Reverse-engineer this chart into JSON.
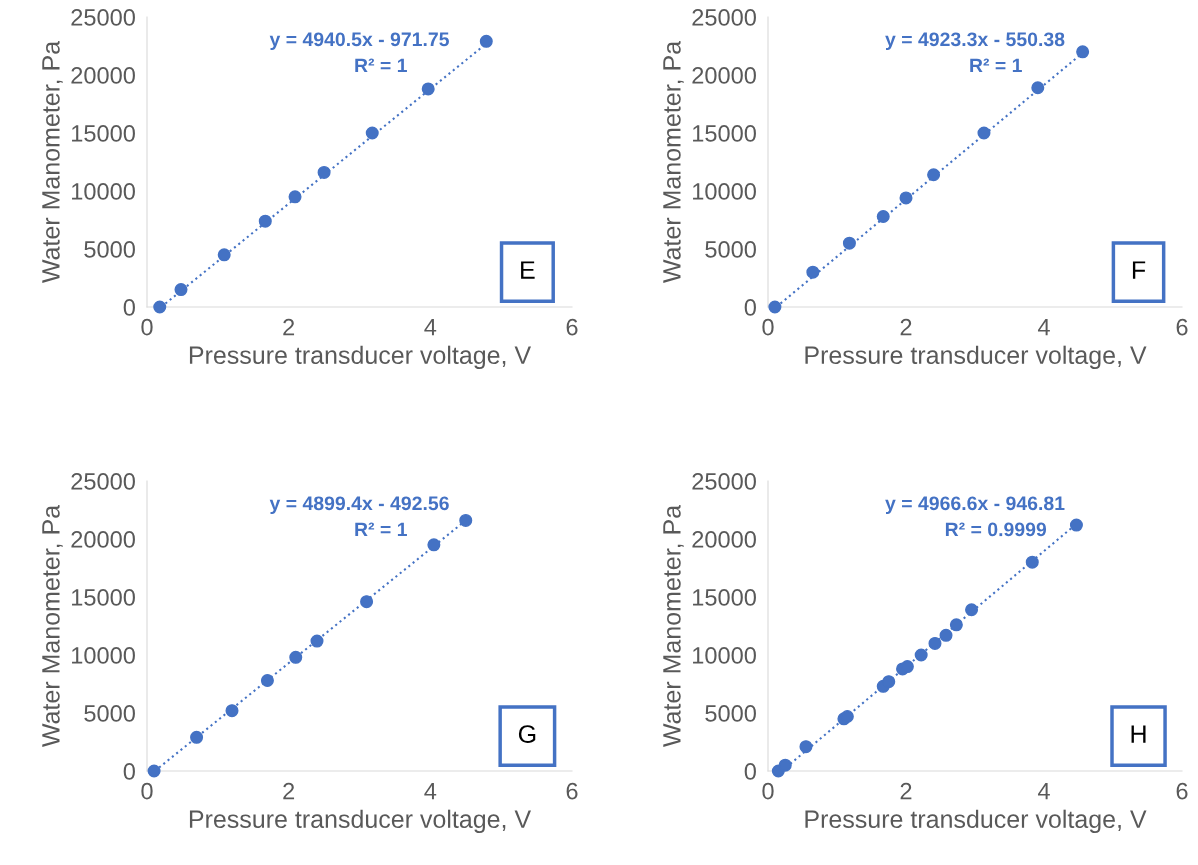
{
  "chart_data": [
    {
      "type": "scatter",
      "xlabel": "Pressure transducer voltage, V",
      "ylabel": "Water Manometer, Pa",
      "xlim": [
        0,
        6
      ],
      "xticks": [
        0,
        2,
        4,
        6
      ],
      "ylim": [
        0,
        25000
      ],
      "yticks": [
        0,
        5000,
        10000,
        15000,
        20000,
        25000
      ],
      "annotations": [
        "y = 4940.5x - 971.75",
        "R² = 1",
        "E"
      ],
      "series": [
        {
          "marker": "circle",
          "color": "#4472c4",
          "x": [
            0.18,
            0.48,
            1.09,
            1.67,
            2.09,
            2.5,
            3.18,
            3.97,
            4.79
          ],
          "values": [
            0,
            1500,
            4500,
            7400,
            9500,
            11600,
            15000,
            18800,
            22900
          ]
        },
        {
          "type": "line",
          "marker": "none",
          "line_style": "dotted",
          "color": "#4472c4",
          "x": [
            0.2,
            4.85
          ],
          "values": [
            0,
            23000
          ]
        }
      ]
    },
    {
      "type": "scatter",
      "xlabel": "Pressure transducer voltage, V",
      "ylabel": "Water Manometer, Pa",
      "xlim": [
        0,
        6
      ],
      "xticks": [
        0,
        2,
        4,
        6
      ],
      "ylim": [
        0,
        25000
      ],
      "yticks": [
        0,
        5000,
        10000,
        15000,
        20000,
        25000
      ],
      "annotations": [
        "y = 4923.3x - 550.38",
        "R² = 1",
        "F"
      ],
      "series": [
        {
          "marker": "circle",
          "color": "#4472c4",
          "x": [
            0.1,
            0.65,
            1.18,
            1.67,
            2.0,
            2.4,
            3.13,
            3.91,
            4.56
          ],
          "values": [
            0,
            3000,
            5500,
            7800,
            9400,
            11400,
            15000,
            18900,
            22000
          ]
        },
        {
          "type": "line",
          "marker": "none",
          "line_style": "dotted",
          "color": "#4472c4",
          "x": [
            0.12,
            4.6
          ],
          "values": [
            0,
            22100
          ]
        }
      ]
    },
    {
      "type": "scatter",
      "xlabel": "Pressure transducer voltage, V",
      "ylabel": "Water Manometer, Pa",
      "xlim": [
        0,
        6
      ],
      "xticks": [
        0,
        2,
        4,
        6
      ],
      "ylim": [
        0,
        25000
      ],
      "yticks": [
        0,
        5000,
        10000,
        15000,
        20000,
        25000
      ],
      "annotations": [
        "y = 4899.4x - 492.56",
        "R² = 1",
        "G"
      ],
      "series": [
        {
          "marker": "circle",
          "color": "#4472c4",
          "x": [
            0.1,
            0.7,
            1.2,
            1.7,
            2.1,
            2.4,
            3.1,
            4.05,
            4.5
          ],
          "values": [
            0,
            2900,
            5200,
            7800,
            9800,
            11200,
            14600,
            19500,
            21600
          ]
        },
        {
          "type": "line",
          "marker": "none",
          "line_style": "dotted",
          "color": "#4472c4",
          "x": [
            0.11,
            4.5
          ],
          "values": [
            0,
            21600
          ]
        }
      ]
    },
    {
      "type": "scatter",
      "xlabel": "Pressure transducer voltage, V",
      "ylabel": "Water Manometer, Pa",
      "xlim": [
        0,
        6
      ],
      "xticks": [
        0,
        2,
        4,
        6
      ],
      "ylim": [
        0,
        25000
      ],
      "yticks": [
        0,
        5000,
        10000,
        15000,
        20000,
        25000
      ],
      "annotations": [
        "y = 4966.6x - 946.81",
        "R² = 0.9999",
        "H"
      ],
      "series": [
        {
          "marker": "circle",
          "color": "#4472c4",
          "x": [
            0.15,
            0.25,
            0.55,
            1.1,
            1.15,
            1.67,
            1.75,
            1.95,
            2.02,
            2.22,
            2.42,
            2.58,
            2.73,
            2.95,
            3.83,
            4.47
          ],
          "values": [
            0,
            500,
            2100,
            4500,
            4700,
            7300,
            7700,
            8800,
            9000,
            10000,
            11000,
            11700,
            12600,
            13900,
            18000,
            21200
          ]
        },
        {
          "type": "line",
          "marker": "none",
          "line_style": "dotted",
          "color": "#4472c4",
          "x": [
            0.2,
            4.47
          ],
          "values": [
            0,
            21300
          ]
        }
      ]
    }
  ]
}
